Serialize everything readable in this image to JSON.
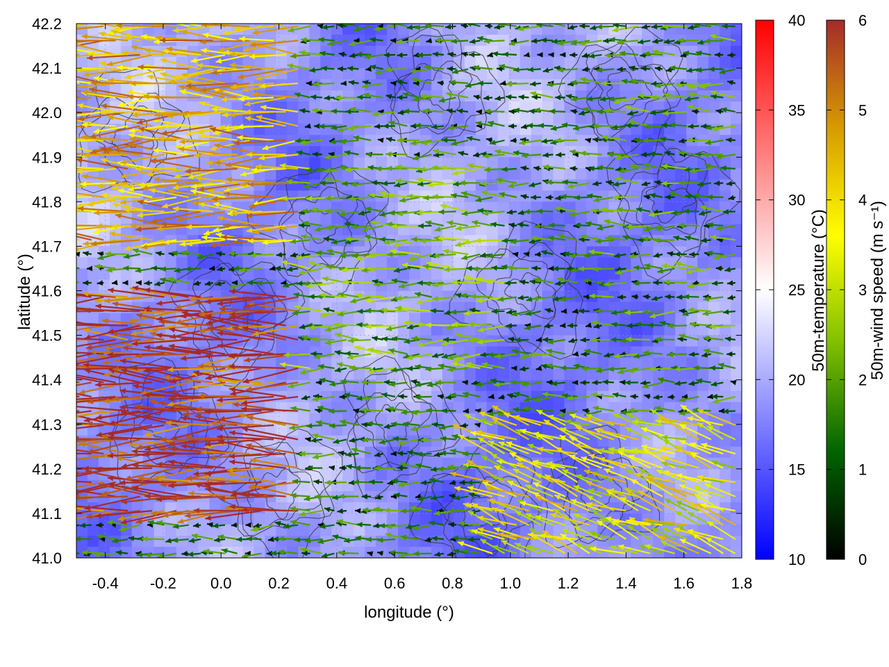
{
  "chart_data": {
    "type": "heatmap",
    "title": "",
    "xlabel": "longitude (°)",
    "ylabel": "latitude (°)",
    "xlim": [
      -0.5,
      1.8
    ],
    "ylim": [
      41.0,
      42.2
    ],
    "x_ticks": [
      -0.4,
      -0.2,
      0.0,
      0.2,
      0.4,
      0.6,
      0.8,
      1.0,
      1.2,
      1.4,
      1.6,
      1.8
    ],
    "x_tick_labels": [
      "-0.4",
      "-0.2",
      "0.0",
      "0.2",
      "0.4",
      "0.6",
      "0.8",
      "1.0",
      "1.2",
      "1.4",
      "1.6",
      "1.8"
    ],
    "y_ticks": [
      41.0,
      41.1,
      41.2,
      41.3,
      41.4,
      41.5,
      41.6,
      41.7,
      41.8,
      41.9,
      42.0,
      42.1,
      42.2
    ],
    "y_tick_labels": [
      "41.0",
      "41.1",
      "41.2",
      "41.3",
      "41.4",
      "41.5",
      "41.6",
      "41.7",
      "41.8",
      "41.9",
      "42.0",
      "42.1",
      "42.2"
    ],
    "grid": true,
    "layers": [
      {
        "kind": "field",
        "quantity": "50m-temperature",
        "typical_range": [
          14,
          24
        ]
      },
      {
        "kind": "contours",
        "quantity": "terrain",
        "color": "#333333"
      },
      {
        "kind": "vectors",
        "quantity": "50m-wind",
        "prevailing_direction": "westward"
      }
    ],
    "colorbars": [
      {
        "label": "50m-temperature (°C)",
        "range": [
          10,
          40
        ],
        "ticks": [
          10,
          15,
          20,
          25,
          30,
          35,
          40
        ],
        "tick_labels": [
          "10",
          "15",
          "20",
          "25",
          "30",
          "35",
          "40"
        ],
        "colors": [
          "#0000ff",
          "#ffffff",
          "#ff0000"
        ]
      },
      {
        "label": "50m-wind speed (m s⁻¹)",
        "range": [
          0,
          6
        ],
        "ticks": [
          0,
          1,
          2,
          3,
          4,
          5,
          6
        ],
        "tick_labels": [
          "0",
          "1",
          "2",
          "3",
          "4",
          "5",
          "6"
        ],
        "colors": [
          "#000000",
          "#006400",
          "#7fbf00",
          "#ffff00",
          "#d79b00",
          "#a52a2a"
        ]
      }
    ],
    "wind_regions": [
      {
        "area": "west",
        "lon": [
          -0.5,
          0.3
        ],
        "lat": [
          41.1,
          41.6
        ],
        "speed": 5.8
      },
      {
        "area": "northwest",
        "lon": [
          -0.5,
          0.3
        ],
        "lat": [
          41.7,
          42.2
        ],
        "speed": 4.5
      },
      {
        "area": "central",
        "lon": [
          0.3,
          1.0
        ],
        "lat": [
          41.4,
          41.9
        ],
        "speed": 2.0
      },
      {
        "area": "east",
        "lon": [
          1.3,
          1.8
        ],
        "lat": [
          41.4,
          42.2
        ],
        "speed": 1.5
      },
      {
        "area": "southeast",
        "lon": [
          0.9,
          1.8
        ],
        "lat": [
          41.0,
          41.3
        ],
        "speed": 3.5
      }
    ]
  }
}
